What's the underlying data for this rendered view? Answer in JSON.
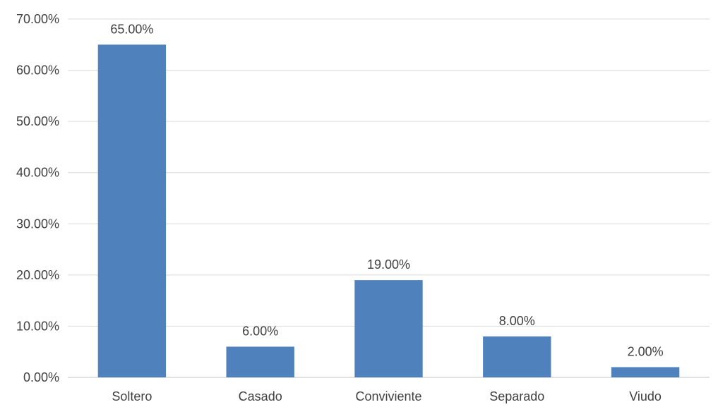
{
  "chart_data": {
    "type": "bar",
    "categories": [
      "Soltero",
      "Casado",
      "Conviviente",
      "Separado",
      "Viudo"
    ],
    "values": [
      65.0,
      6.0,
      19.0,
      8.0,
      2.0
    ],
    "data_labels": [
      "65.00%",
      "6.00%",
      "19.00%",
      "8.00%",
      "2.00%"
    ],
    "ylim": [
      0,
      70
    ],
    "yticks": [
      0,
      10,
      20,
      30,
      40,
      50,
      60,
      70
    ],
    "ytick_labels": [
      "0.00%",
      "10.00%",
      "20.00%",
      "30.00%",
      "40.00%",
      "50.00%",
      "60.00%",
      "70.00%"
    ],
    "title": "",
    "xlabel": "",
    "ylabel": "",
    "grid": true,
    "legend": "none",
    "colors": {
      "bar": "#4F81BD",
      "grid": "#D9D9D9",
      "text": "#404040"
    }
  }
}
